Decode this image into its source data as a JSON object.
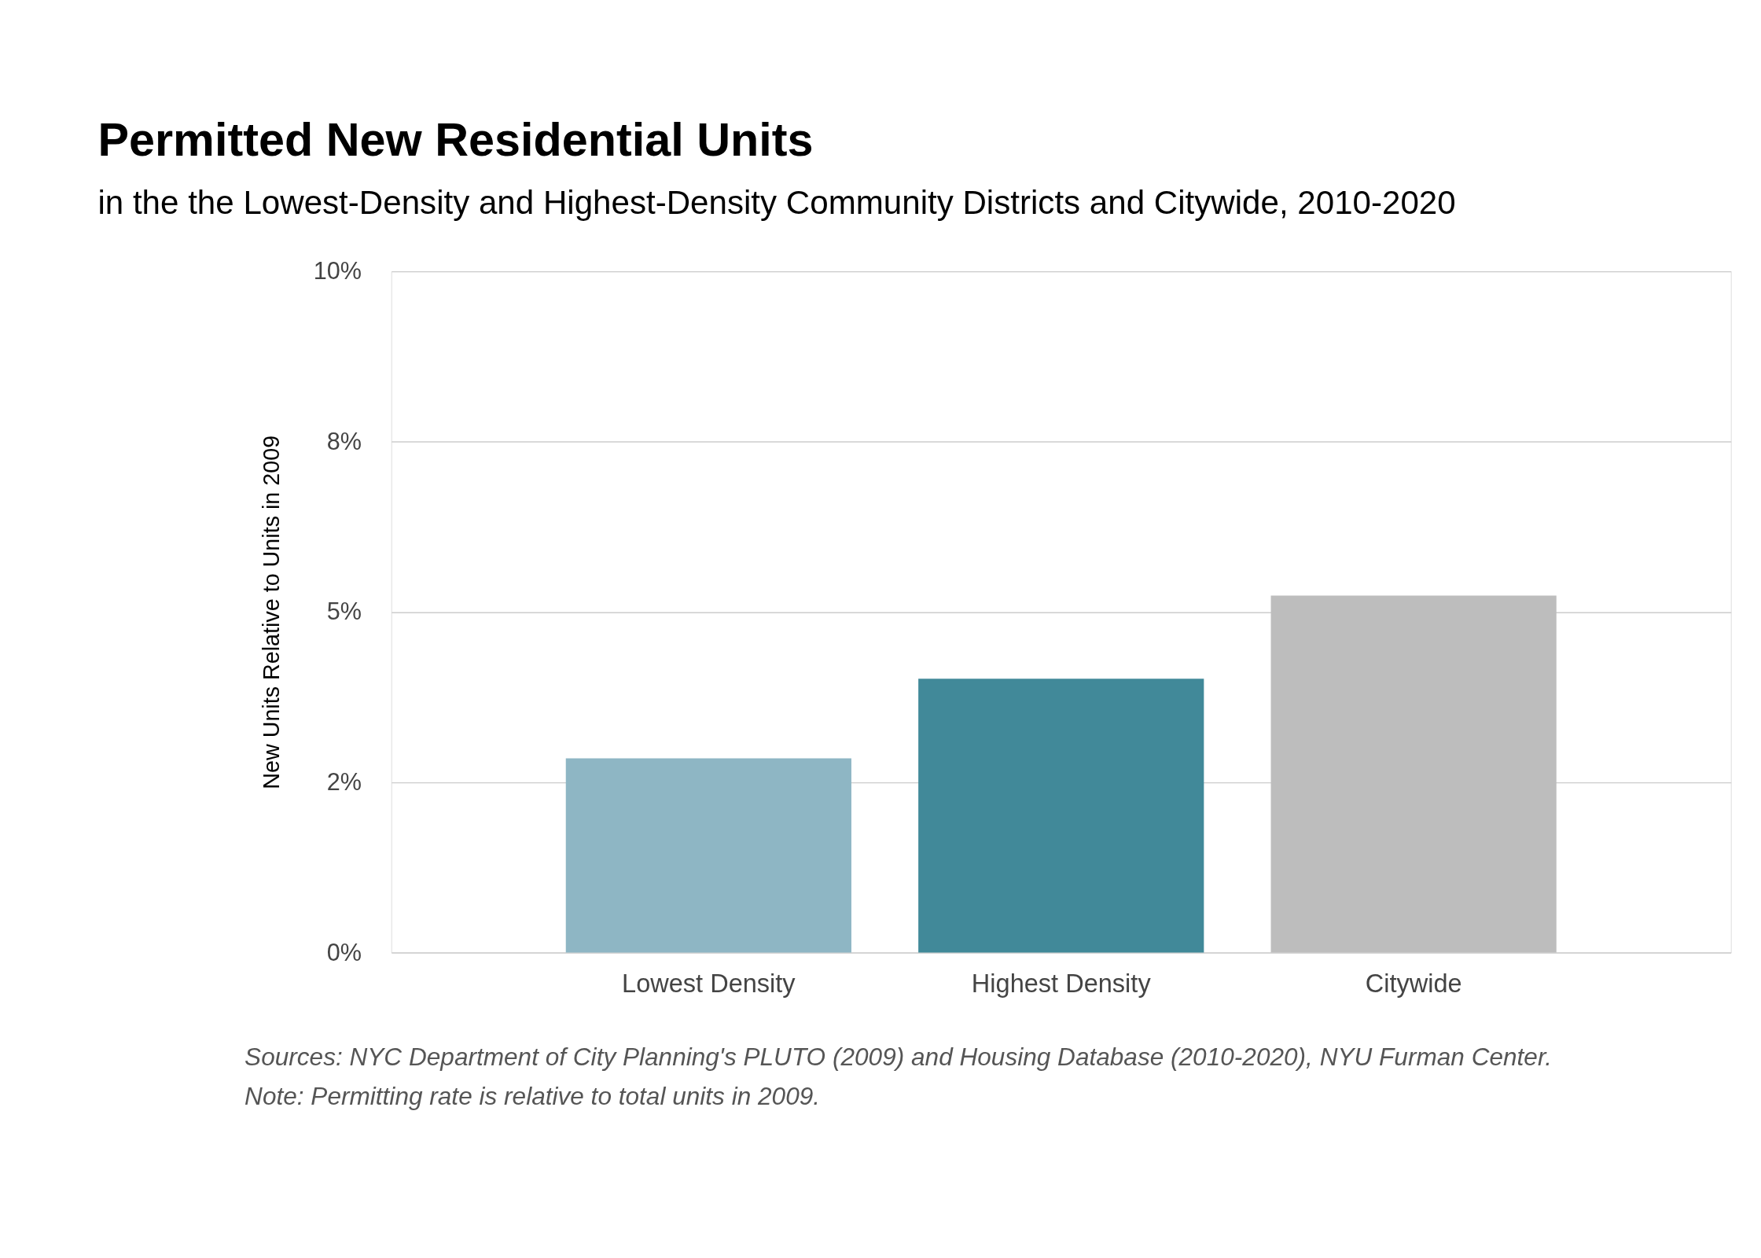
{
  "chart_data": {
    "type": "bar",
    "title": "Permitted New Residential Units",
    "subtitle": "in the the Lowest-Density and Highest-Density Community Districts and Citywide, 2010-2020",
    "ylabel": "New Units Relative to Units in 2009",
    "categories": [
      "Lowest Density",
      "Highest Density",
      "Citywide"
    ],
    "values": [
      2.85,
      4.02,
      5.24
    ],
    "colors": [
      "#8eb6c4",
      "#418999",
      "#bdbdbd"
    ],
    "ylim": [
      0,
      10
    ],
    "yticks": [
      {
        "value": 0,
        "label": "0%"
      },
      {
        "value": 2.5,
        "label": "2%"
      },
      {
        "value": 5,
        "label": "5%"
      },
      {
        "value": 7.5,
        "label": "8%"
      },
      {
        "value": 10,
        "label": "10%"
      }
    ],
    "grid": "y",
    "annotations": [
      "Sources: NYC Department of City Planning's PLUTO (2009) and Housing Database (2010-2020), NYU Furman Center.",
      "Note: Permitting rate is relative to total units in 2009."
    ]
  }
}
